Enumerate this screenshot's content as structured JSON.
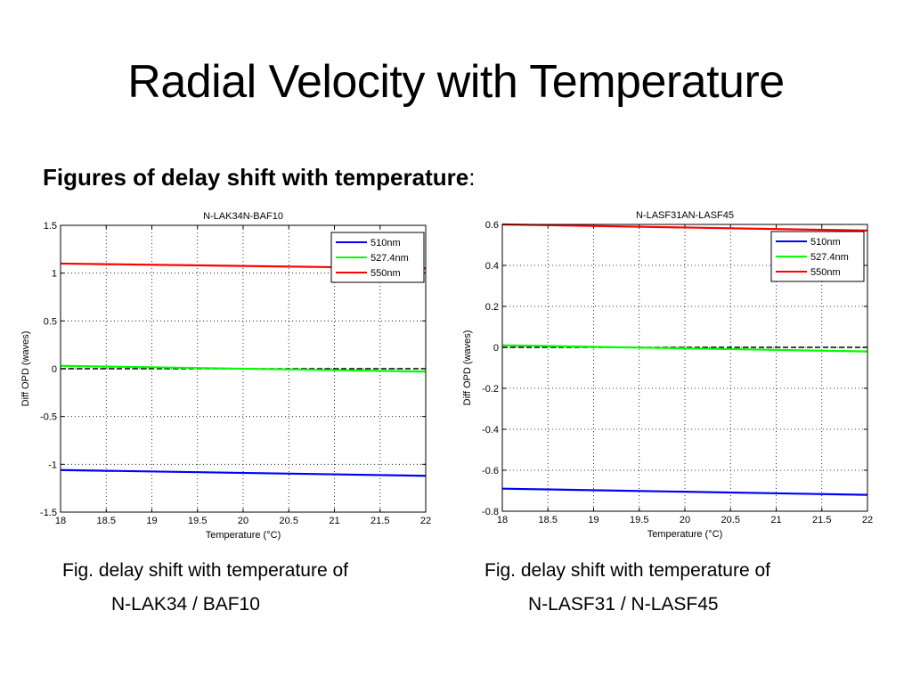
{
  "slide": {
    "title": "Radial Velocity with Temperature",
    "subtitle": "Figures of delay shift with temperature",
    "subtitle_suffix": ":"
  },
  "captions": [
    {
      "line1": "Fig. delay shift with temperature of",
      "line2": "N-LAK34 / BAF10"
    },
    {
      "line1": "Fig. delay shift with temperature of",
      "line2": "N-LASF31 / N-LASF45"
    }
  ],
  "chart_data": [
    {
      "type": "line",
      "title": "N-LAK34N-BAF10",
      "xlabel": "Temperature (°C)",
      "ylabel": "Diff OPD (waves)",
      "xlim": [
        18,
        22
      ],
      "ylim": [
        -1.5,
        1.5
      ],
      "xticks": [
        "18",
        "18.5",
        "19",
        "19.5",
        "20",
        "20.5",
        "21",
        "21.5",
        "22"
      ],
      "yticks": [
        "-1.5",
        "-1",
        "-0.5",
        "0",
        "0.5",
        "1",
        "1.5"
      ],
      "grid": true,
      "legend_position": "top-right",
      "series": [
        {
          "name": "510nm",
          "color": "#0000ff",
          "x": [
            18,
            22
          ],
          "y": [
            -1.06,
            -1.12
          ]
        },
        {
          "name": "527.4nm",
          "color": "#00ff00",
          "x": [
            18,
            22
          ],
          "y": [
            0.03,
            -0.03
          ]
        },
        {
          "name": "550nm",
          "color": "#ff0000",
          "x": [
            18,
            22
          ],
          "y": [
            1.1,
            1.05
          ]
        }
      ],
      "reference": {
        "style": "dashed",
        "color": "#000000",
        "y": 0
      }
    },
    {
      "type": "line",
      "title": "N-LASF31AN-LASF45",
      "xlabel": "Temperature (°C)",
      "ylabel": "Diff OPD (waves)",
      "xlim": [
        18,
        22
      ],
      "ylim": [
        -0.8,
        0.6
      ],
      "xticks": [
        "18",
        "18.5",
        "19",
        "19.5",
        "20",
        "20.5",
        "21",
        "21.5",
        "22"
      ],
      "yticks": [
        "-0.8",
        "-0.6",
        "-0.4",
        "-0.2",
        "0",
        "0.2",
        "0.4",
        "0.6"
      ],
      "grid": true,
      "legend_position": "top-right",
      "series": [
        {
          "name": "510nm",
          "color": "#0000ff",
          "x": [
            18,
            22
          ],
          "y": [
            -0.69,
            -0.72
          ]
        },
        {
          "name": "527.4nm",
          "color": "#00ff00",
          "x": [
            18,
            22
          ],
          "y": [
            0.01,
            -0.02
          ]
        },
        {
          "name": "550nm",
          "color": "#ff0000",
          "x": [
            18,
            22
          ],
          "y": [
            0.6,
            0.57
          ]
        }
      ],
      "reference": {
        "style": "dashed",
        "color": "#000000",
        "y": 0
      }
    }
  ]
}
